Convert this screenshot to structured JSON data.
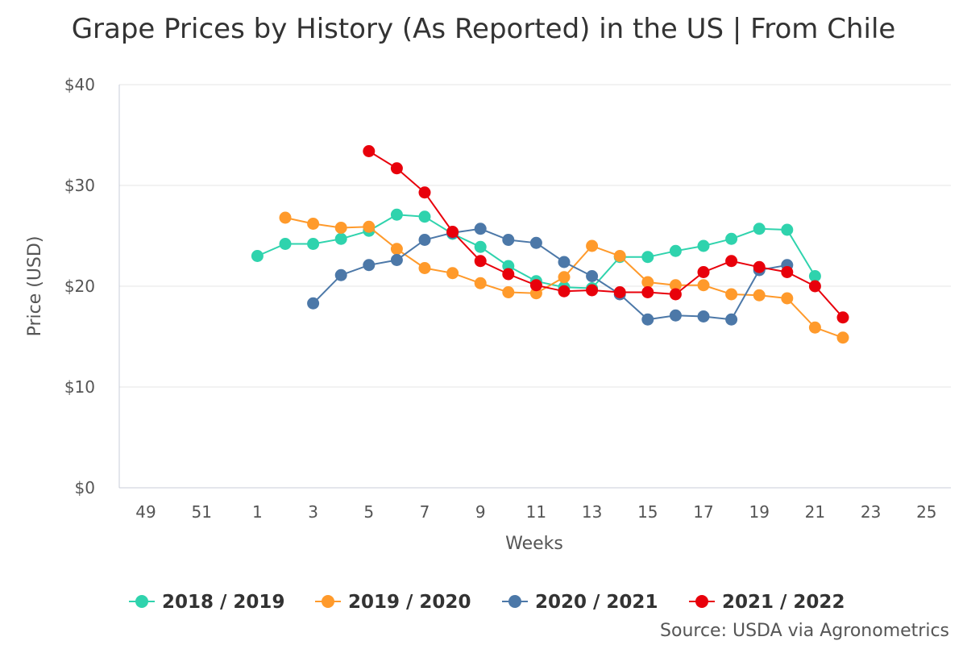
{
  "chart_data": {
    "type": "line",
    "title": "Grape Prices by History (As Reported) in the US | From Chile",
    "xlabel": "Weeks",
    "ylabel": "Price (USD)",
    "x_ticks": [
      "49",
      "51",
      "1",
      "3",
      "5",
      "7",
      "9",
      "11",
      "13",
      "15",
      "17",
      "19",
      "21",
      "23",
      "25"
    ],
    "x_positions": [
      49,
      50,
      51,
      52,
      1,
      2,
      3,
      4,
      5,
      6,
      7,
      8,
      9,
      10,
      11,
      12,
      13,
      14,
      15,
      16,
      17,
      18,
      19,
      20,
      21,
      22,
      23,
      24,
      25
    ],
    "y_ticks": [
      "$0",
      "$10",
      "$20",
      "$30",
      "$40"
    ],
    "ylim": [
      0,
      40
    ],
    "grid": true,
    "legend_position": "bottom",
    "source": "Source: USDA via Agronometrics",
    "series": [
      {
        "name": "2018 / 2019",
        "color": "#2fd3ad",
        "points": [
          [
            1,
            23.0
          ],
          [
            2,
            24.2
          ],
          [
            3,
            24.2
          ],
          [
            4,
            24.7
          ],
          [
            5,
            25.5
          ],
          [
            6,
            27.1
          ],
          [
            7,
            26.9
          ],
          [
            8,
            25.2
          ],
          [
            9,
            23.9
          ],
          [
            10,
            22.0
          ],
          [
            11,
            20.5
          ],
          [
            12,
            19.9
          ],
          [
            13,
            19.8
          ],
          [
            14,
            22.9
          ],
          [
            15,
            22.9
          ],
          [
            16,
            23.5
          ],
          [
            17,
            24.0
          ],
          [
            18,
            24.7
          ],
          [
            19,
            25.7
          ],
          [
            20,
            25.6
          ],
          [
            21,
            21.0
          ]
        ]
      },
      {
        "name": "2019 / 2020",
        "color": "#ff9a2b",
        "points": [
          [
            2,
            26.8
          ],
          [
            3,
            26.2
          ],
          [
            4,
            25.8
          ],
          [
            5,
            25.9
          ],
          [
            6,
            23.7
          ],
          [
            7,
            21.8
          ],
          [
            8,
            21.3
          ],
          [
            9,
            20.3
          ],
          [
            10,
            19.4
          ],
          [
            11,
            19.3
          ],
          [
            12,
            20.9
          ],
          [
            13,
            24.0
          ],
          [
            14,
            23.0
          ],
          [
            15,
            20.4
          ],
          [
            16,
            20.1
          ],
          [
            17,
            20.1
          ],
          [
            18,
            19.2
          ],
          [
            19,
            19.1
          ],
          [
            20,
            18.8
          ],
          [
            21,
            15.9
          ],
          [
            22,
            14.9
          ]
        ]
      },
      {
        "name": "2020 / 2021",
        "color": "#4c78a8",
        "points": [
          [
            3,
            18.3
          ],
          [
            4,
            21.1
          ],
          [
            5,
            22.1
          ],
          [
            6,
            22.6
          ],
          [
            7,
            24.6
          ],
          [
            8,
            25.3
          ],
          [
            9,
            25.7
          ],
          [
            10,
            24.6
          ],
          [
            11,
            24.3
          ],
          [
            12,
            22.4
          ],
          [
            13,
            21.0
          ],
          [
            14,
            19.2
          ],
          [
            15,
            16.7
          ],
          [
            16,
            17.1
          ],
          [
            17,
            17.0
          ],
          [
            18,
            16.7
          ],
          [
            19,
            21.6
          ],
          [
            20,
            22.1
          ]
        ]
      },
      {
        "name": "2021 / 2022",
        "color": "#e8000b",
        "points": [
          [
            5,
            33.4
          ],
          [
            6,
            31.7
          ],
          [
            7,
            29.3
          ],
          [
            8,
            25.4
          ],
          [
            9,
            22.5
          ],
          [
            10,
            21.2
          ],
          [
            11,
            20.1
          ],
          [
            12,
            19.5
          ],
          [
            13,
            19.6
          ],
          [
            14,
            19.4
          ],
          [
            15,
            19.4
          ],
          [
            16,
            19.2
          ],
          [
            17,
            21.4
          ],
          [
            18,
            22.5
          ],
          [
            19,
            21.9
          ],
          [
            20,
            21.4
          ],
          [
            21,
            20.0
          ],
          [
            22,
            16.9
          ]
        ]
      }
    ]
  }
}
